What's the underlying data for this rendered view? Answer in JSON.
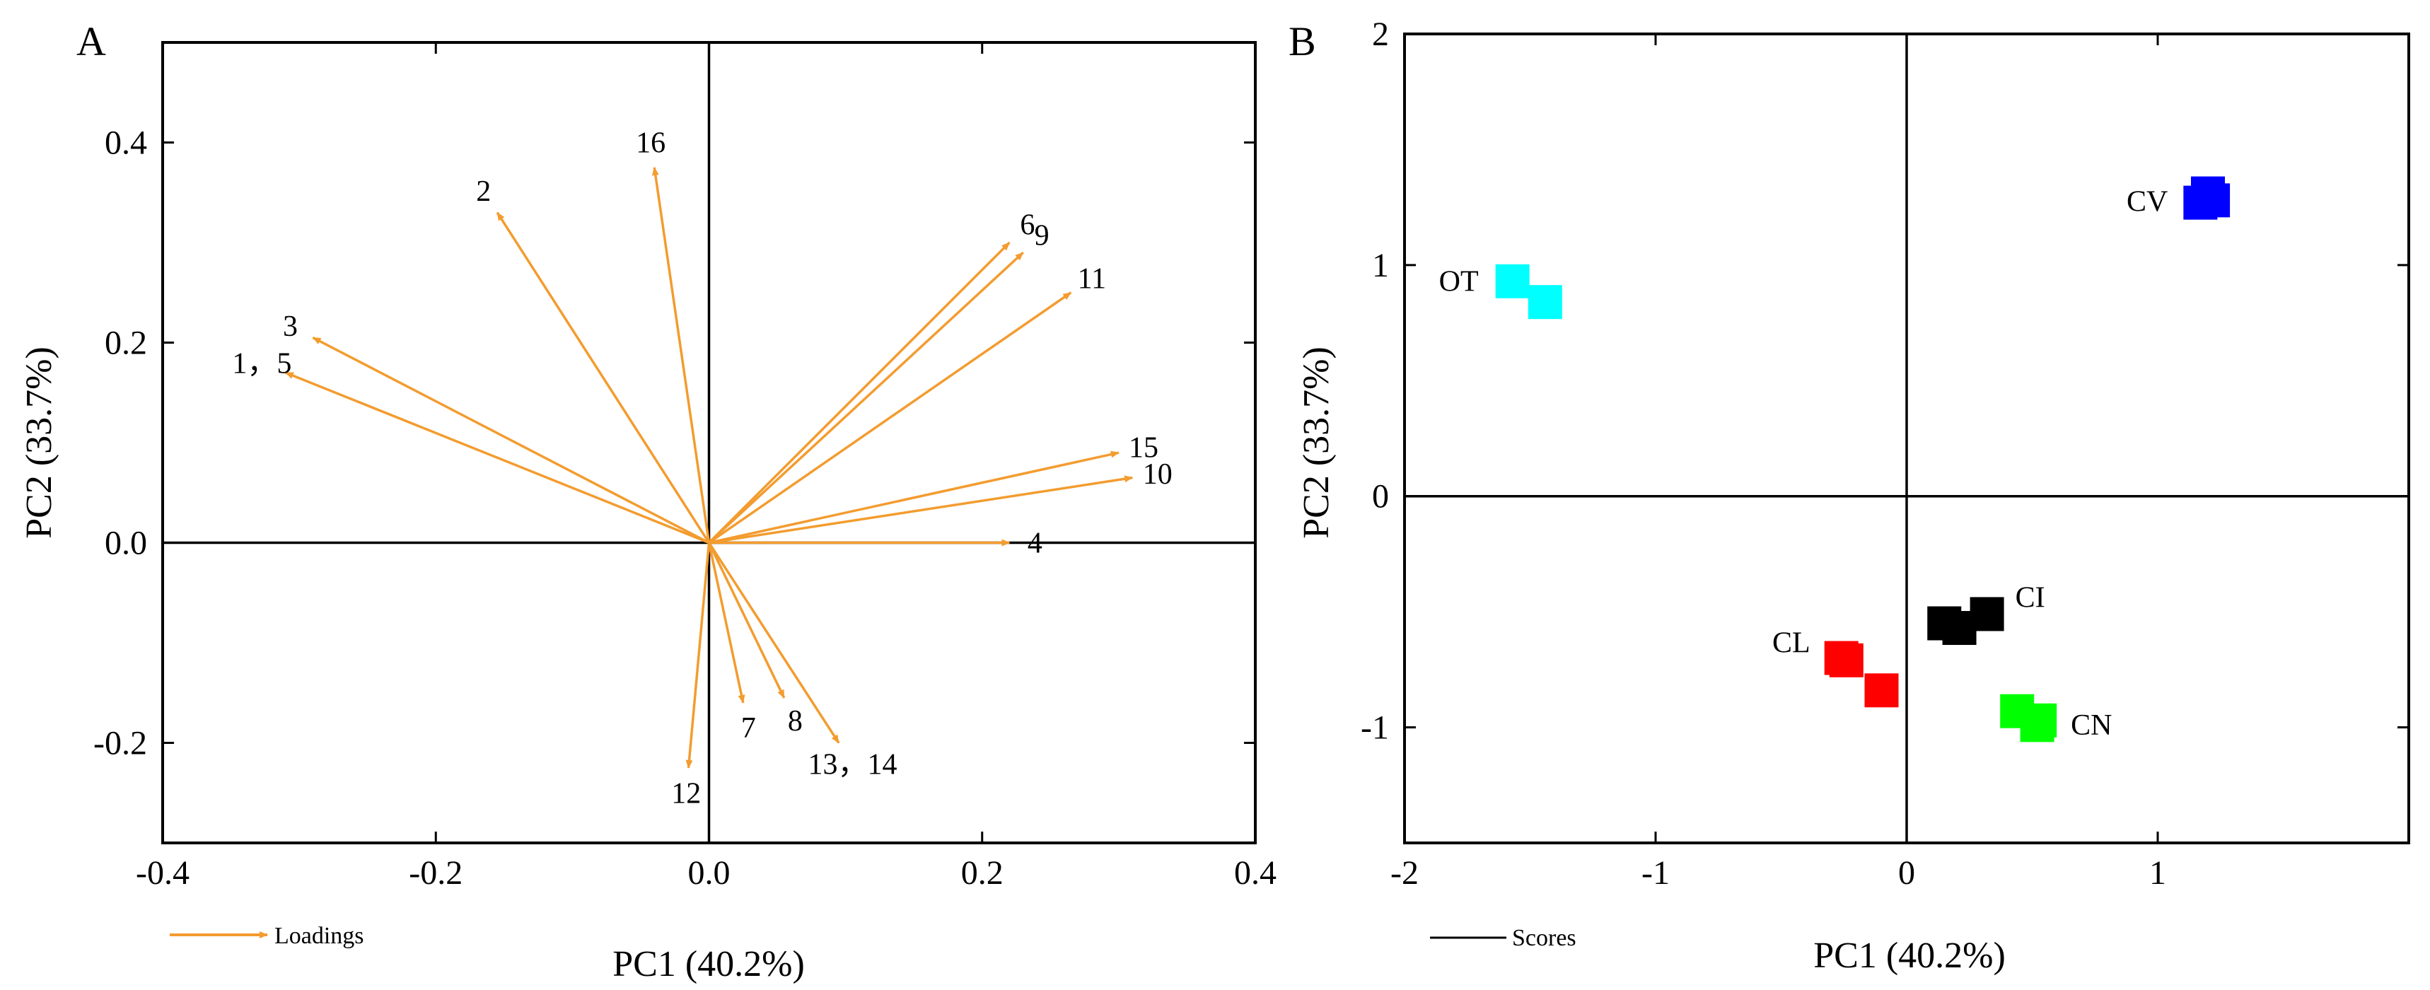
{
  "chart_data": [
    {
      "type": "scatter",
      "subtype": "loading-vectors",
      "panel_label": "A",
      "title": "",
      "xlabel": "PC1 (40.2%)",
      "ylabel": "PC2 (33.7%)",
      "xlim": [
        -0.4,
        0.4
      ],
      "ylim": [
        -0.3,
        0.5
      ],
      "xticks": [
        -0.4,
        -0.2,
        0.0,
        0.2,
        0.4
      ],
      "xtick_labels": [
        "-0.4",
        "-0.2",
        "0.0",
        "0.2",
        "0.4"
      ],
      "yticks": [
        -0.2,
        0.0,
        0.2,
        0.4
      ],
      "ytick_labels": [
        "-0.2",
        "0.0",
        "0.2",
        "0.4"
      ],
      "grid": false,
      "arrow_color": "#F39C2F",
      "legend": {
        "label": "Loadings",
        "position": "bottom-left"
      },
      "vectors": [
        {
          "label": "1，5",
          "x": -0.31,
          "y": 0.17
        },
        {
          "label": "2",
          "x": -0.155,
          "y": 0.33
        },
        {
          "label": "3",
          "x": -0.29,
          "y": 0.205
        },
        {
          "label": "4",
          "x": 0.22,
          "y": 0.0
        },
        {
          "label": "6",
          "x": 0.22,
          "y": 0.3
        },
        {
          "label": "7",
          "x": 0.025,
          "y": -0.16
        },
        {
          "label": "8",
          "x": 0.055,
          "y": -0.155
        },
        {
          "label": "9",
          "x": 0.23,
          "y": 0.29
        },
        {
          "label": "10",
          "x": 0.31,
          "y": 0.065
        },
        {
          "label": "11",
          "x": 0.265,
          "y": 0.25
        },
        {
          "label": "12",
          "x": -0.015,
          "y": -0.225
        },
        {
          "label": "13，14",
          "x": 0.095,
          "y": -0.2
        },
        {
          "label": "15",
          "x": 0.3,
          "y": 0.09
        },
        {
          "label": "16",
          "x": -0.04,
          "y": 0.375
        }
      ]
    },
    {
      "type": "scatter",
      "subtype": "scores",
      "panel_label": "B",
      "title": "",
      "xlabel": "PC1 (40.2%)",
      "ylabel": "PC2 (33.7%)",
      "xlim": [
        -2,
        2
      ],
      "ylim": [
        -1.5,
        2
      ],
      "xticks": [
        -2,
        -1,
        0,
        1
      ],
      "xtick_labels": [
        "-2",
        "-1",
        "0",
        "1"
      ],
      "yticks": [
        -1,
        0,
        1,
        2
      ],
      "ytick_labels": [
        "-1",
        "0",
        "1",
        "2"
      ],
      "grid": false,
      "legend": {
        "label": "Scores",
        "position": "bottom-left"
      },
      "groups": [
        {
          "name": "OT",
          "color": "#00FFFF",
          "points": [
            [
              -1.57,
              0.93
            ],
            [
              -1.44,
              0.84
            ]
          ]
        },
        {
          "name": "CV",
          "color": "#0000FF",
          "points": [
            [
              1.17,
              1.27
            ],
            [
              1.2,
              1.31
            ],
            [
              1.22,
              1.28
            ]
          ]
        },
        {
          "name": "CI",
          "color": "#000000",
          "points": [
            [
              0.15,
              -0.55
            ],
            [
              0.21,
              -0.57
            ],
            [
              0.32,
              -0.51
            ]
          ]
        },
        {
          "name": "CL",
          "color": "#FF0000",
          "points": [
            [
              -0.26,
              -0.7
            ],
            [
              -0.24,
              -0.71
            ],
            [
              -0.1,
              -0.84
            ]
          ]
        },
        {
          "name": "CN",
          "color": "#00FF00",
          "points": [
            [
              0.44,
              -0.93
            ],
            [
              0.52,
              -0.99
            ],
            [
              0.53,
              -0.97
            ]
          ]
        }
      ]
    }
  ]
}
